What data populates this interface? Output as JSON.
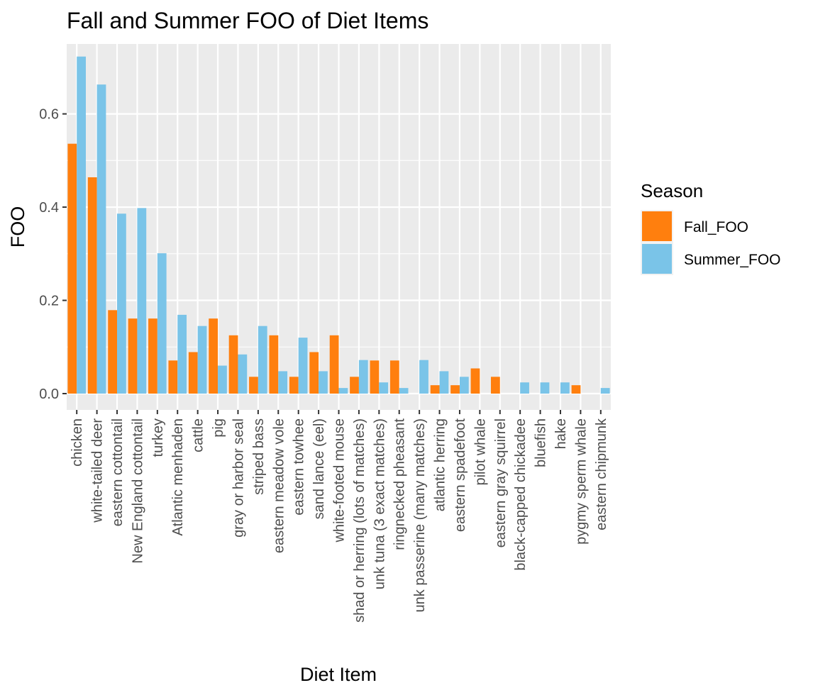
{
  "chart_data": {
    "type": "bar",
    "title": "Fall and Summer FOO of Diet Items",
    "xlabel": "Diet Item",
    "ylabel": "FOO",
    "ylim": [
      -0.035,
      0.75
    ],
    "yticks": [
      0.0,
      0.2,
      0.4,
      0.6
    ],
    "ytick_labels": [
      "0.0",
      "0.2",
      "0.4",
      "0.6"
    ],
    "grid": true,
    "legend": {
      "title": "Season",
      "position": "right",
      "entries": [
        "Fall_FOO",
        "Summer_FOO"
      ]
    },
    "categories": [
      "chicken",
      "white-tailed deer",
      "eastern cottontail",
      "New England cottontail",
      "turkey",
      "Atlantic menhaden",
      "cattle",
      "pig",
      "gray or harbor seal",
      "striped bass",
      "eastern meadow vole",
      "eastern towhee",
      "sand lance (eel)",
      "white-footed mouse",
      "shad or herring (lots of matches)",
      "unk tuna (3 exact matches)",
      "ringnecked pheasant",
      "unk passerine (many matches)",
      "atlantic herring",
      "eastern spadefoot",
      "pilot whale",
      "eastern gray squirrel",
      "black-capped chickadee",
      "bluefish",
      "hake",
      "pygmy sperm whale",
      "eastern chipmunk"
    ],
    "series": [
      {
        "name": "Fall_FOO",
        "color": "#ff7f0e",
        "values": [
          0.536,
          0.464,
          0.179,
          0.161,
          0.161,
          0.071,
          0.089,
          0.161,
          0.125,
          0.036,
          0.125,
          0.036,
          0.089,
          0.125,
          0.036,
          0.071,
          0.071,
          0.0,
          0.018,
          0.018,
          0.054,
          0.036,
          0.0,
          0.0,
          0.0,
          0.018,
          0.0
        ]
      },
      {
        "name": "Summer_FOO",
        "color": "#7ac4e8",
        "values": [
          0.723,
          0.663,
          0.386,
          0.398,
          0.301,
          0.169,
          0.145,
          0.06,
          0.084,
          0.145,
          0.048,
          0.12,
          0.048,
          0.012,
          0.072,
          0.024,
          0.012,
          0.072,
          0.048,
          0.036,
          0.0,
          0.0,
          0.024,
          0.024,
          0.024,
          0.0,
          0.012
        ]
      }
    ]
  }
}
